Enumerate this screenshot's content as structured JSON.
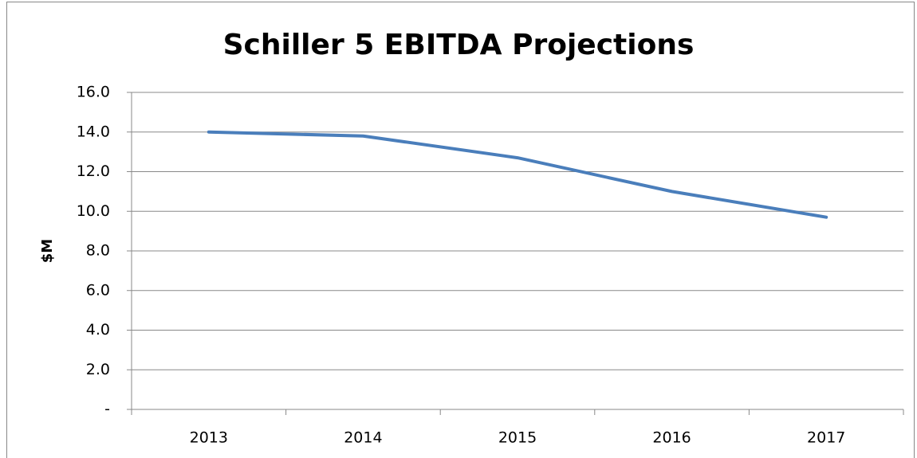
{
  "chart_data": {
    "type": "line",
    "title": "Schiller 5 EBITDA Projections",
    "y_label": "$M",
    "categories": [
      "2013",
      "2014",
      "2015",
      "2016",
      "2017"
    ],
    "series": [
      {
        "name": "EBITDA",
        "color": "#4a7ebb",
        "values": [
          14.0,
          13.8,
          12.7,
          11.0,
          9.7
        ]
      }
    ],
    "ylim": [
      0,
      16
    ],
    "yticks": [
      {
        "value": 0,
        "label": "-"
      },
      {
        "value": 2,
        "label": "2.0"
      },
      {
        "value": 4,
        "label": "4.0"
      },
      {
        "value": 6,
        "label": "6.0"
      },
      {
        "value": 8,
        "label": "8.0"
      },
      {
        "value": 10,
        "label": "10.0"
      },
      {
        "value": 12,
        "label": "12.0"
      },
      {
        "value": 14,
        "label": "14.0"
      },
      {
        "value": 16,
        "label": "16.0"
      }
    ],
    "grid": true
  }
}
